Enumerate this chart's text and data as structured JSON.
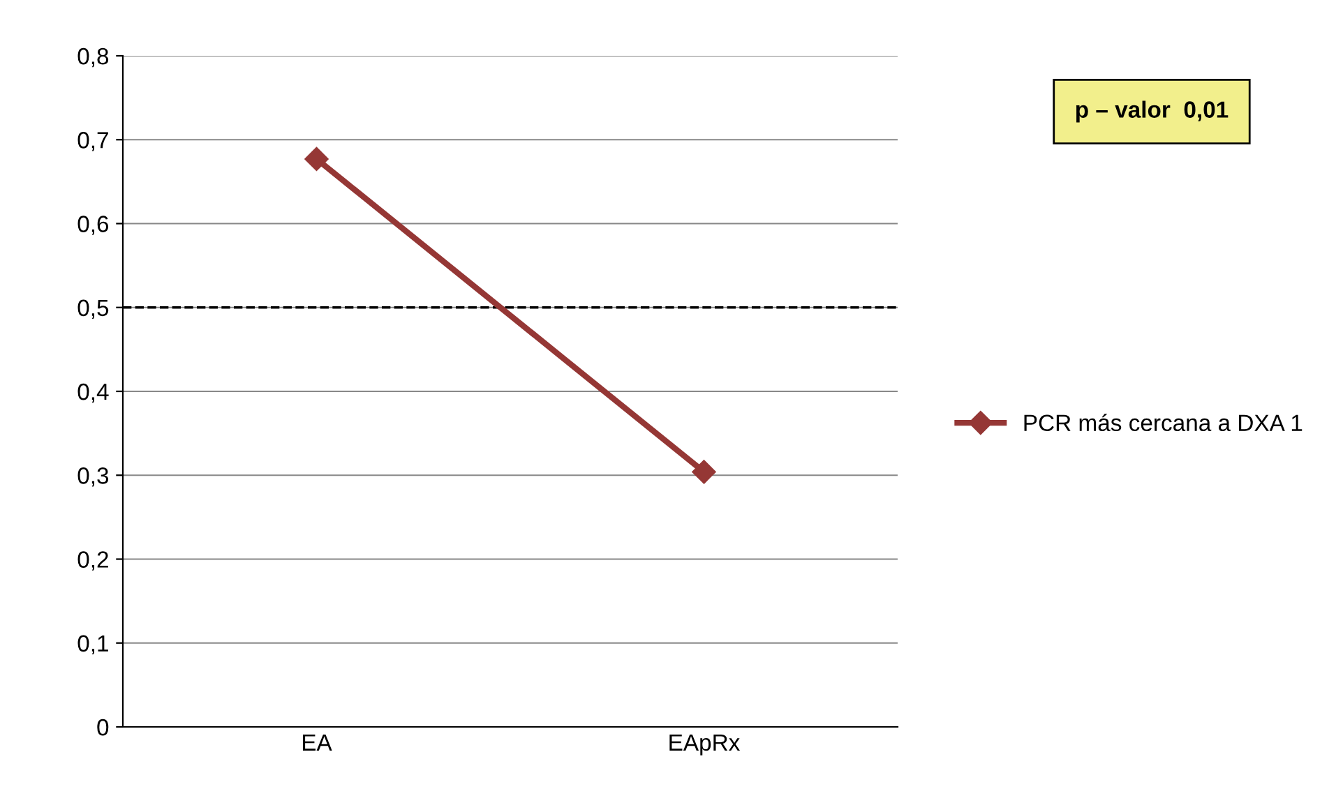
{
  "chart_data": {
    "type": "line",
    "categories": [
      "EA",
      "EApRx"
    ],
    "series": [
      {
        "name": "PCR más cercana a DXA 1",
        "color": "#953735",
        "values": [
          0.677,
          0.304
        ]
      }
    ],
    "ylim": [
      0,
      0.8
    ],
    "yticks": [
      0,
      {
        "value": 0.1,
        "label": "0,1"
      },
      {
        "value": 0.2,
        "label": "0,2"
      },
      {
        "value": 0.3,
        "label": "0,3"
      },
      {
        "value": 0.4,
        "label": "0,4"
      },
      {
        "value": 0.5,
        "label": "0,5"
      },
      {
        "value": 0.6,
        "label": "0,6"
      },
      {
        "value": 0.7,
        "label": "0,7"
      },
      {
        "value": 0.8,
        "label": "0,8"
      }
    ],
    "ref_lines": [
      {
        "axis": "y",
        "value": 0.5,
        "color": "#000000",
        "line_style": "dashed"
      }
    ],
    "annotations": [
      "p – valor  0,01"
    ],
    "grid": "y",
    "legend": "right",
    "marker": "diamond",
    "line_style": "solid"
  }
}
